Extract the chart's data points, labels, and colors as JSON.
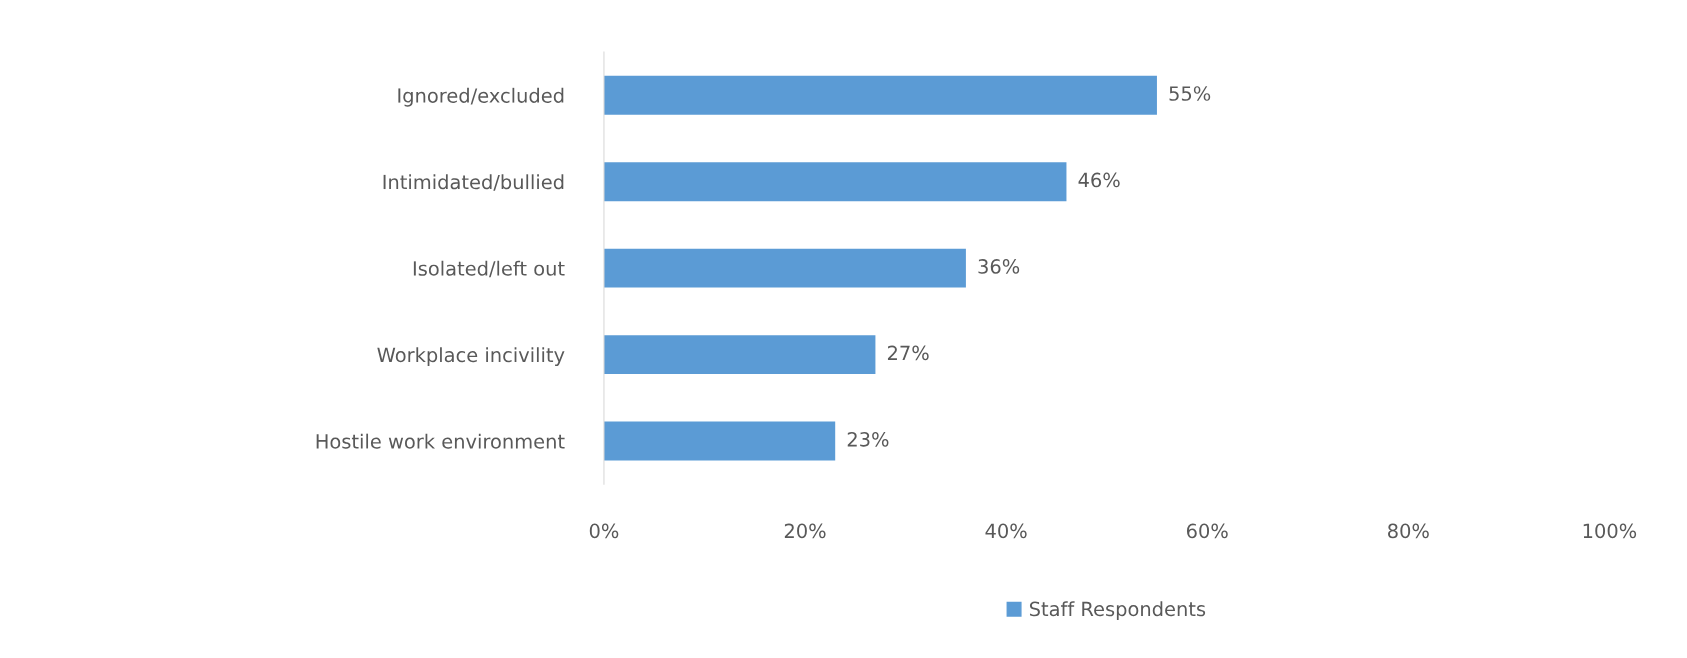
{
  "chart_data": {
    "type": "bar",
    "orientation": "horizontal",
    "categories": [
      "Ignored/excluded",
      "Intimidated/bullied",
      "Isolated/left out",
      "Workplace incivility",
      "Hostile work environment"
    ],
    "series": [
      {
        "name": "Staff Respondents",
        "color": "#5b9bd5",
        "values": [
          55,
          46,
          36,
          27,
          23
        ],
        "value_labels": [
          "55%",
          "46%",
          "36%",
          "27%",
          "23%"
        ]
      }
    ],
    "xlim": [
      0,
      100
    ],
    "xticks": [
      {
        "value": 0,
        "label": "0%"
      },
      {
        "value": 20,
        "label": "20%"
      },
      {
        "value": 40,
        "label": "40%"
      },
      {
        "value": 60,
        "label": "60%"
      },
      {
        "value": 80,
        "label": "80%"
      },
      {
        "value": 100,
        "label": "100%"
      }
    ],
    "grid": false,
    "legend": "bottom"
  }
}
